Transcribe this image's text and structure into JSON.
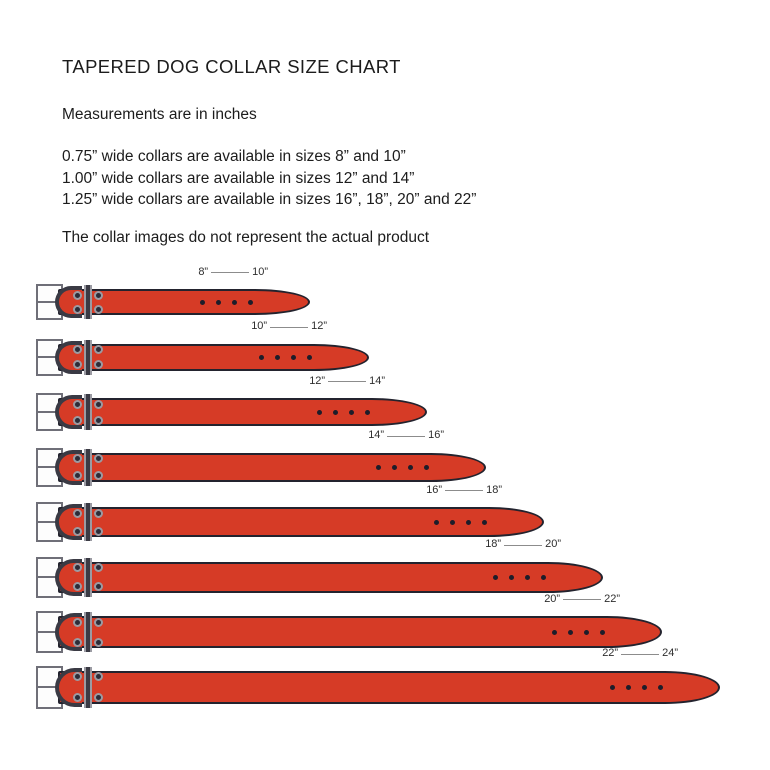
{
  "header": {
    "title": "TAPERED DOG COLLAR SIZE CHART",
    "subtitle": "Measurements are in inches",
    "size_lines": [
      "0.75” wide collars are available in sizes 8” and 10”",
      "1.00” wide collars are available in sizes 12” and 14”",
      "1.25” wide collars are available in sizes 16”, 18”, 20” and 22”"
    ],
    "disclaimer": "The collar images do not represent the actual product"
  },
  "chart_data": {
    "type": "diagram",
    "title": "Tapered dog collar size chart",
    "unit": "inches",
    "collars": [
      {
        "label_min": "8”",
        "label_max": "10”",
        "min_in": 8,
        "max_in": 10
      },
      {
        "label_min": "10”",
        "label_max": "12”",
        "min_in": 10,
        "max_in": 12
      },
      {
        "label_min": "12”",
        "label_max": "14”",
        "min_in": 12,
        "max_in": 14
      },
      {
        "label_min": "14”",
        "label_max": "16”",
        "min_in": 14,
        "max_in": 16
      },
      {
        "label_min": "16”",
        "label_max": "18”",
        "min_in": 16,
        "max_in": 18
      },
      {
        "label_min": "18”",
        "label_max": "20”",
        "min_in": 18,
        "max_in": 20
      },
      {
        "label_min": "20”",
        "label_max": "22”",
        "min_in": 20,
        "max_in": 22
      },
      {
        "label_min": "22”",
        "label_max": "24”",
        "min_in": 22,
        "max_in": 24
      }
    ],
    "holes_per_collar": 4
  },
  "colors": {
    "strap_red": "#d63b26",
    "strap_outline": "#23232e",
    "hardware_light": "#9b9ba3",
    "hardware_dark": "#3a3a44",
    "buckle_frame_fill": "#fdfdfd",
    "buckle_frame_border": "#6f6f78",
    "hole_color": "#1d1d2a",
    "label_line": "#8c8c8c"
  }
}
